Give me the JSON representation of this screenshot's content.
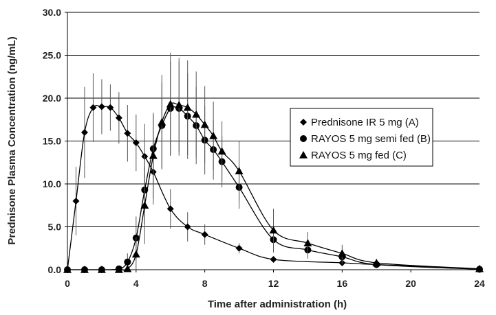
{
  "chart_data": {
    "type": "line",
    "title": "",
    "xlabel": "Time after administration (h)",
    "ylabel": "Prednisone Plasma Concentration (ng/mL)",
    "xlim": [
      0,
      24
    ],
    "ylim": [
      0,
      30
    ],
    "xticks": [
      0,
      4,
      8,
      12,
      16,
      20,
      24
    ],
    "xtick_labels": [
      "0",
      "4",
      "8",
      "12",
      "16",
      "20",
      "24"
    ],
    "yticks": [
      0,
      5,
      10,
      15,
      20,
      25,
      30
    ],
    "ytick_labels": [
      "0.0",
      "5.0",
      "10.0",
      "15.0",
      "20.0",
      "25.0",
      "30.0"
    ],
    "grid": "horizontal",
    "legend_position": "center-right",
    "series": [
      {
        "name": "Prednisone IR  5 mg (A)",
        "marker": "diamond",
        "color": "#000000",
        "x": [
          0,
          0.5,
          1,
          1.5,
          2,
          2.5,
          3,
          3.5,
          4,
          4.5,
          5,
          6,
          7,
          8,
          10,
          12,
          16,
          18,
          24
        ],
        "y": [
          0,
          8.0,
          16.0,
          18.9,
          19.0,
          18.9,
          17.7,
          15.9,
          14.8,
          13.2,
          11.4,
          7.1,
          5.0,
          4.1,
          2.5,
          1.2,
          0.8,
          0.6,
          0.1
        ],
        "err": [
          0,
          4.0,
          5.3,
          4.0,
          3.2,
          2.7,
          3.0,
          3.3,
          3.3,
          3.8,
          3.8,
          2.3,
          1.7,
          1.2,
          0.6,
          0.3,
          0.3,
          0.2,
          0
        ]
      },
      {
        "name": "RAYOS  5 mg semi fed (B)",
        "marker": "circle",
        "color": "#000000",
        "x": [
          0,
          1,
          2,
          3,
          3.5,
          4,
          4.5,
          5,
          5.5,
          6,
          6.5,
          7,
          7.5,
          8,
          8.5,
          9,
          10,
          12,
          14,
          16,
          18,
          24
        ],
        "y": [
          0,
          0,
          0,
          0.1,
          0.9,
          3.7,
          9.3,
          14.1,
          16.8,
          18.8,
          18.8,
          17.9,
          16.8,
          15.1,
          14.0,
          12.6,
          9.6,
          3.5,
          2.3,
          1.5,
          0.6,
          0.05
        ],
        "err": [
          0,
          0,
          0,
          0.2,
          1.0,
          2.5,
          4.0,
          4.0,
          5.0,
          5.5,
          5.5,
          5.0,
          4.5,
          4.0,
          3.5,
          3.0,
          2.5,
          1.5,
          1.0,
          0.8,
          0.3,
          0
        ]
      },
      {
        "name": "RAYOS  5 mg fed (C)",
        "marker": "triangle",
        "color": "#000000",
        "x": [
          0,
          1,
          2,
          3,
          3.5,
          4,
          4.5,
          5,
          5.5,
          6,
          6.5,
          7,
          7.5,
          8,
          8.5,
          9,
          10,
          12,
          14,
          16,
          18,
          24
        ],
        "y": [
          0,
          0,
          0,
          0,
          0.1,
          1.8,
          7.5,
          13.3,
          17.2,
          19.3,
          19.2,
          18.9,
          18.1,
          16.9,
          15.6,
          13.8,
          11.5,
          4.6,
          3.1,
          1.9,
          0.8,
          0.1
        ],
        "err": [
          0,
          0,
          0,
          0,
          0.2,
          2.0,
          4.5,
          5.0,
          5.5,
          6.0,
          5.5,
          5.5,
          5.0,
          4.5,
          4.0,
          3.5,
          3.5,
          2.5,
          1.3,
          1.0,
          0.4,
          0
        ]
      }
    ]
  }
}
